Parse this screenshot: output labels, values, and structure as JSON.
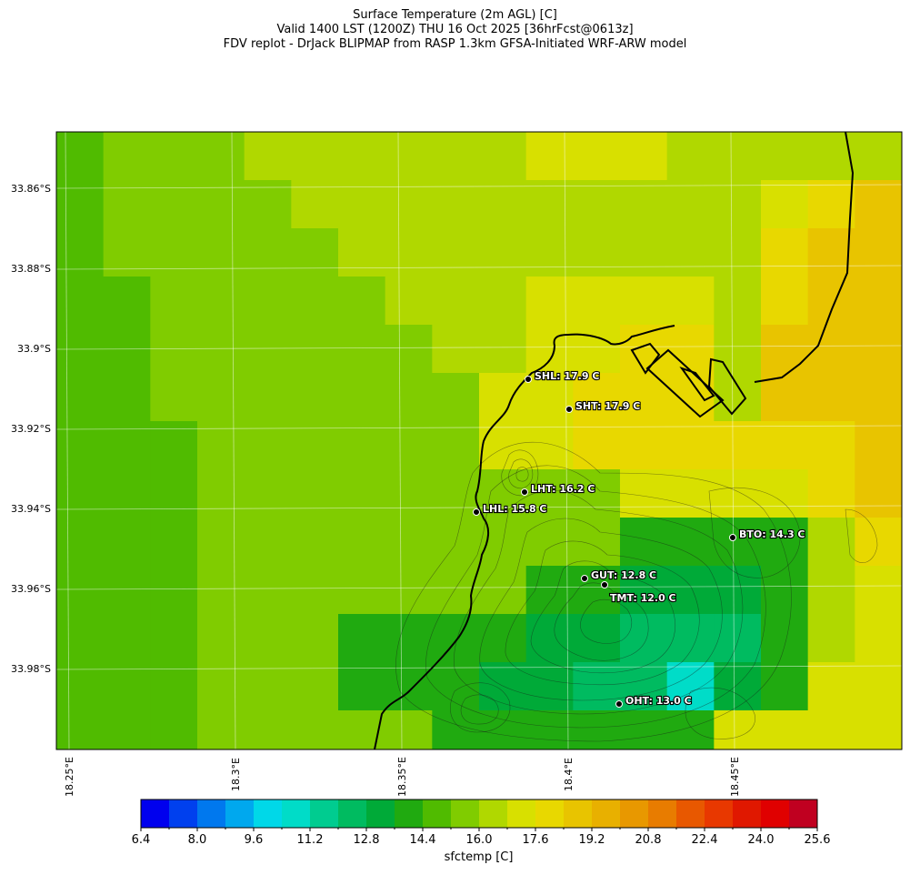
{
  "title": {
    "line1": "Surface Temperature (2m AGL) [C]",
    "line2": "Valid 1400 LST (1200Z) THU 16 Oct 2025 [36hrFcst@0613z]",
    "line3": "FDV replot - DrJack BLIPMAP from RASP 1.3km GFSA-Initiated WRF-ARW model"
  },
  "lat_labels": [
    "33.86°S",
    "33.88°S",
    "33.9°S",
    "33.92°S",
    "33.94°S",
    "33.96°S",
    "33.98°S"
  ],
  "lon_labels": [
    "18.25°E",
    "18.3°E",
    "18.35°E",
    "18.4°E",
    "18.45°E"
  ],
  "stations": [
    {
      "label": "SHL: 17.9 C"
    },
    {
      "label": "SHT: 17.9 C"
    },
    {
      "label": "LHT: 16.2 C"
    },
    {
      "label": "LHL: 15.8 C"
    },
    {
      "label": "BTO: 14.3 C"
    },
    {
      "label": "GUT: 12.8 C"
    },
    {
      "label": "TMT: 12.0 C"
    },
    {
      "label": "OHT: 13.0 C"
    }
  ],
  "colorbar": {
    "label": "sfctemp [C]",
    "ticks": [
      "6.4",
      "8.0",
      "9.6",
      "11.2",
      "12.8",
      "14.4",
      "16.0",
      "17.6",
      "19.2",
      "20.8",
      "22.4",
      "24.0",
      "25.6"
    ],
    "colors": [
      "#0000ee",
      "#0040ee",
      "#0078ee",
      "#00a8ee",
      "#00d8e8",
      "#00dcc8",
      "#00cc90",
      "#00bb60",
      "#00aa38",
      "#20aa10",
      "#50bb00",
      "#80cc00",
      "#b0d800",
      "#d8e000",
      "#e8d800",
      "#e8c400",
      "#e8b000",
      "#e89800",
      "#e87c00",
      "#e85800",
      "#e83800",
      "#e01800",
      "#e00000",
      "#c00020"
    ]
  }
}
